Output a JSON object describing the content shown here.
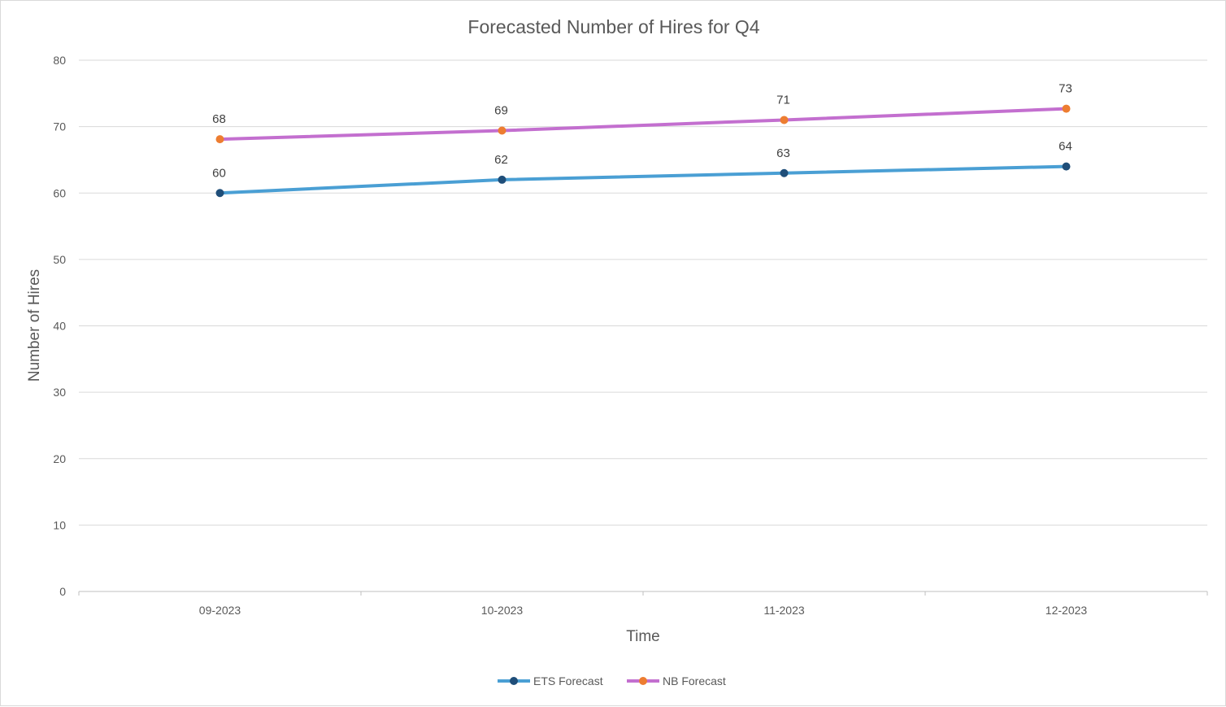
{
  "chart_data": {
    "type": "line",
    "title": "Forecasted Number of Hires for Q4",
    "xlabel": "Time",
    "ylabel": "Number of Hires",
    "categories": [
      "09-2023",
      "10-2023",
      "11-2023",
      "12-2023"
    ],
    "ylim": [
      0,
      80
    ],
    "yticks": [
      0,
      10,
      20,
      30,
      40,
      50,
      60,
      70,
      80
    ],
    "grid": true,
    "legend": "bottom",
    "series": [
      {
        "name": "ETS Forecast",
        "values": [
          60,
          62,
          63,
          64
        ],
        "labels": [
          "60",
          "62",
          "63",
          "64"
        ],
        "line_color": "#4a9fd4",
        "marker_color": "#1f4e79"
      },
      {
        "name": "NB Forecast",
        "values": [
          68.1,
          69.4,
          71.0,
          72.7
        ],
        "labels": [
          "68",
          "69",
          "71",
          "73"
        ],
        "line_color": "#c36fcf",
        "marker_color": "#ed7d31"
      }
    ]
  }
}
